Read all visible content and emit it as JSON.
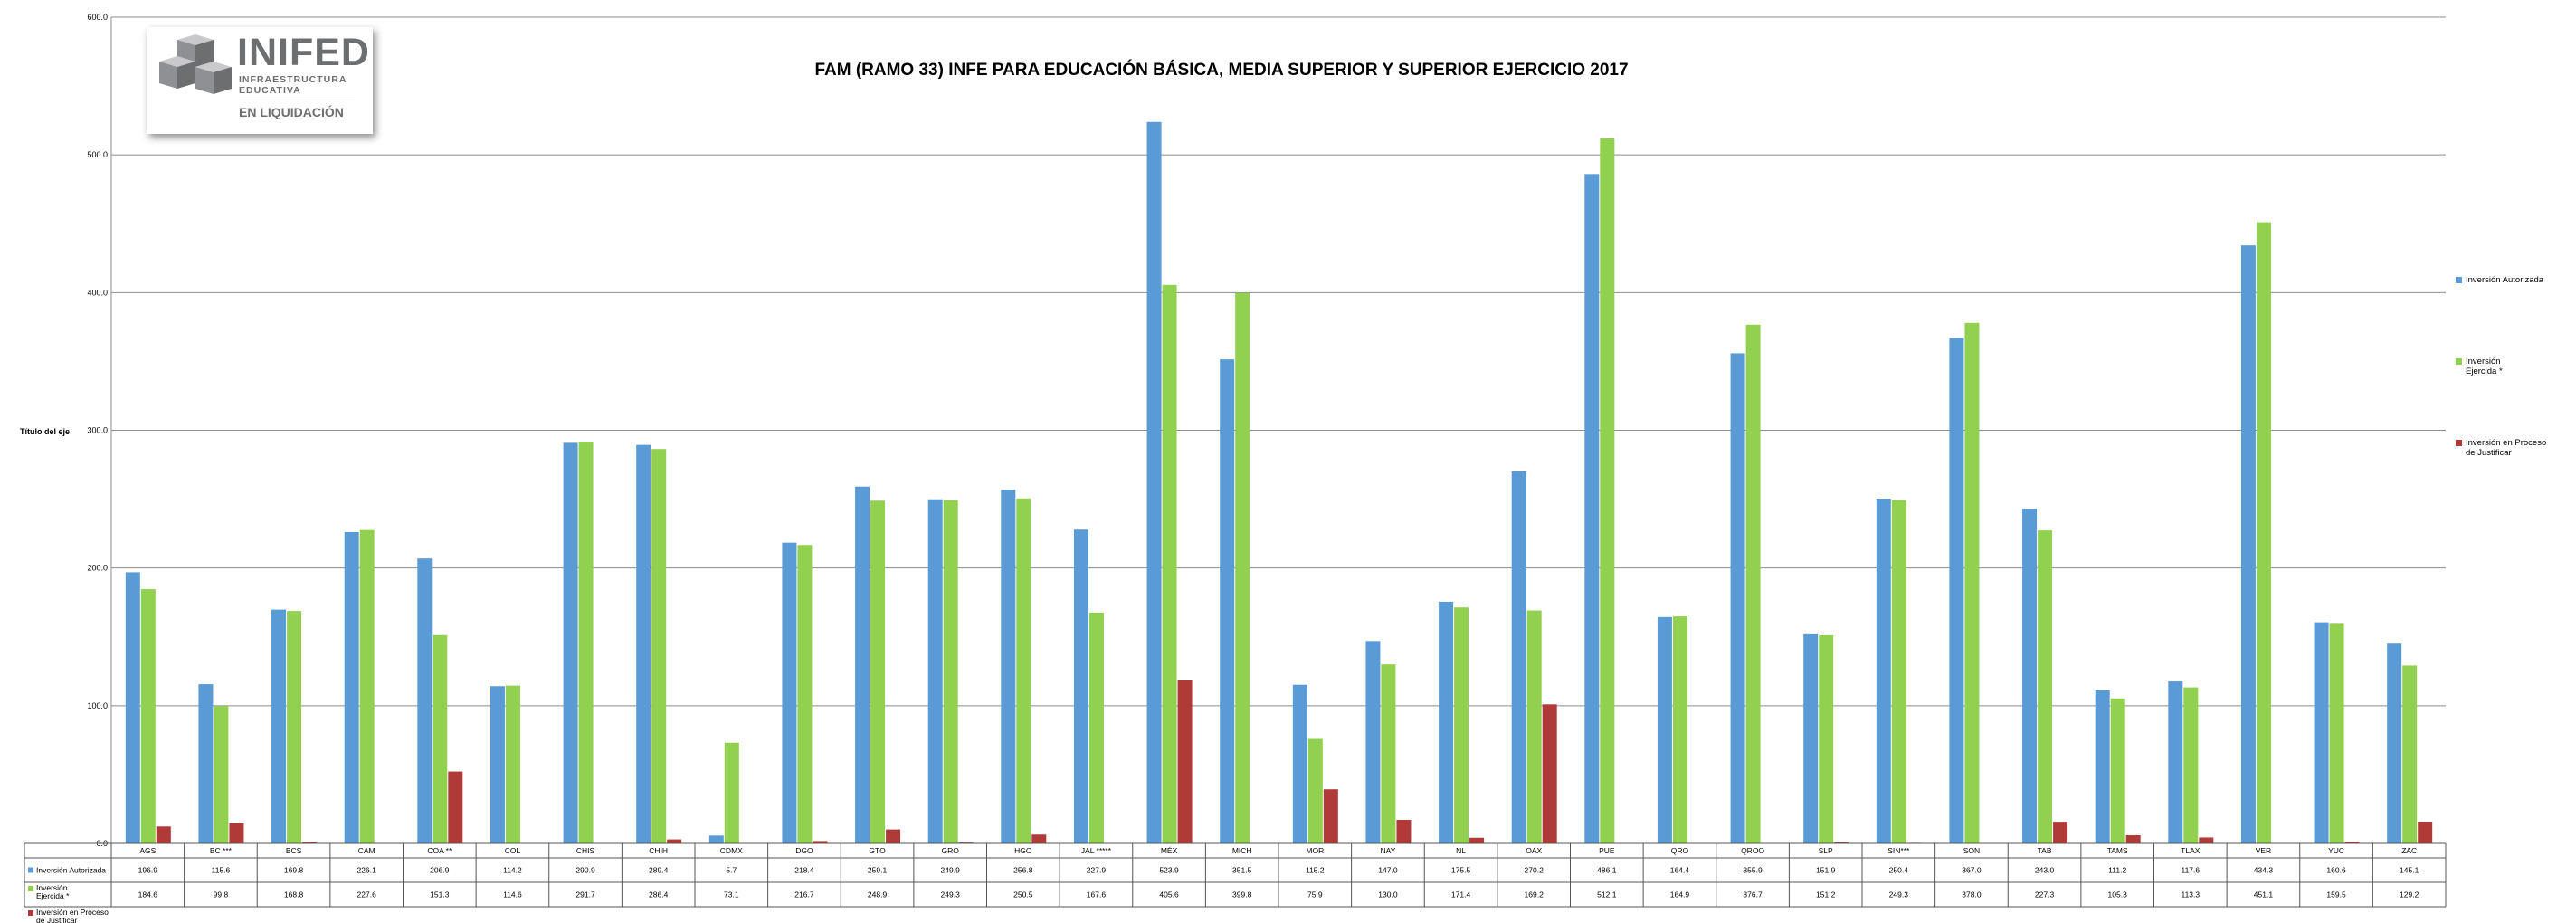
{
  "logo": {
    "name": "INIFED",
    "subtitle_line1": "INFRAESTRUCTURA",
    "subtitle_line2": "EDUCATIVA",
    "status": "EN LIQUIDACIÓN"
  },
  "chart_data": {
    "type": "bar",
    "title": "FAM (RAMO 33) INFE PARA EDUCACIÓN BÁSICA, MEDIA SUPERIOR Y SUPERIOR EJERCICIO 2017",
    "ylabel": "Título del eje",
    "xlabel": "",
    "ylim": [
      0,
      600
    ],
    "yticks": [
      "0.0",
      "100.0",
      "200.0",
      "300.0",
      "400.0",
      "500.0",
      "600.0"
    ],
    "grid": true,
    "legend_position": "right",
    "categories": [
      "AGS",
      "BC ***",
      "BCS",
      "CAM",
      "COA **",
      "COL",
      "CHIS",
      "CHIH",
      "CDMX",
      "DGO",
      "GTO",
      "GRO",
      "HGO",
      "JAL *****",
      "MÉX",
      "MICH",
      "MOR",
      "NAY",
      "NL",
      "OAX",
      "PUE",
      "QRO",
      "QROO",
      "SLP",
      "SIN***",
      "SON",
      "TAB",
      "TAMS",
      "TLAX",
      "VER",
      "YUC",
      "ZAC"
    ],
    "series": [
      {
        "name": "Inversión Autorizada",
        "legend_lines": [
          "Inversión Autorizada"
        ],
        "table_lines": [
          "Inversión Autorizada"
        ],
        "color": "#5b9bd5",
        "values": [
          196.9,
          115.6,
          169.8,
          226.1,
          206.9,
          114.2,
          290.9,
          289.4,
          5.7,
          218.4,
          259.1,
          249.9,
          256.8,
          227.9,
          523.9,
          351.5,
          115.2,
          147.0,
          175.5,
          270.2,
          486.1,
          164.4,
          355.9,
          151.9,
          250.4,
          367.0,
          243.0,
          111.2,
          117.6,
          434.3,
          160.6,
          145.1
        ]
      },
      {
        "name": "Inversión Ejercida *",
        "legend_lines": [
          "Inversión",
          "Ejercida *"
        ],
        "table_lines": [
          "Inversión",
          "Ejercida *"
        ],
        "color": "#92d050",
        "values": [
          184.6,
          99.8,
          168.8,
          227.6,
          151.3,
          114.6,
          291.7,
          286.4,
          73.1,
          216.7,
          248.9,
          249.3,
          250.5,
          167.6,
          405.6,
          399.8,
          75.9,
          130.0,
          171.4,
          169.2,
          512.1,
          164.9,
          376.7,
          151.2,
          249.3,
          378.0,
          227.3,
          105.3,
          113.3,
          451.1,
          159.5,
          129.2
        ]
      },
      {
        "name": "Inversión en Proceso de Justificar",
        "legend_lines": [
          "Inversión en Proceso",
          "de Justificar"
        ],
        "table_lines": [
          "Inversión en Proceso",
          "de Justificar"
        ],
        "color": "#b03a37",
        "values": [
          12.3,
          14.5,
          0.9,
          null,
          52.2,
          null,
          null,
          2.9,
          null,
          1.7,
          10.1,
          0.6,
          6.4,
          null,
          118.3,
          null,
          39.3,
          17.1,
          4.1,
          101.0,
          null,
          null,
          null,
          0.7,
          0.4,
          null,
          15.7,
          5.9,
          4.3,
          null,
          1.1,
          15.8
        ]
      }
    ]
  }
}
